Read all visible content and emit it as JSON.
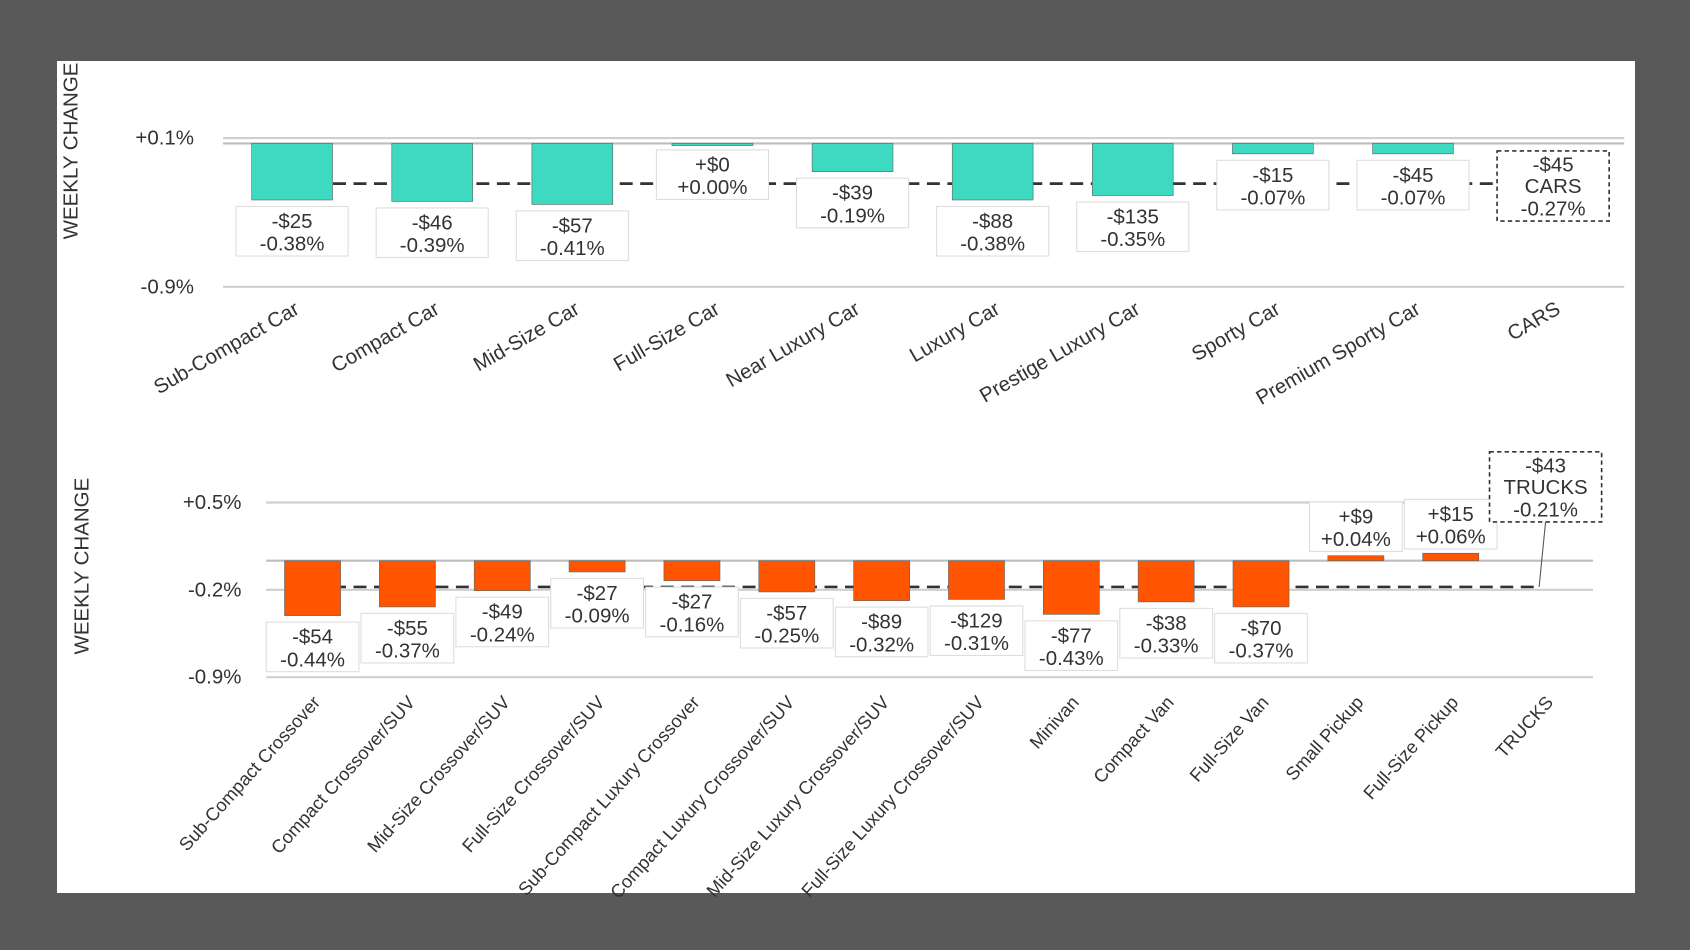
{
  "chart_data": [
    {
      "type": "bar",
      "ylabel": "WEEKLY CHANGE",
      "ylim": [
        -0.9,
        0.1
      ],
      "yticks": [
        "+0.1%",
        "-0.9%"
      ],
      "grid": true,
      "bar_color": "#3dd9c1",
      "categories": [
        "Sub-Compact Car",
        "Compact Car",
        "Mid-Size Car",
        "Full-Size Car",
        "Near Luxury Car",
        "Luxury Car",
        "Prestige Luxury Car",
        "Sporty Car",
        "Premium Sporty Car",
        "CARS"
      ],
      "values_pct": [
        -0.38,
        -0.39,
        -0.41,
        0.0,
        -0.19,
        -0.38,
        -0.35,
        -0.07,
        -0.07,
        null
      ],
      "values_usd": [
        "-$25",
        "-$46",
        "-$57",
        "+$0",
        "-$39",
        "-$88",
        "-$135",
        "-$15",
        "-$45",
        null
      ],
      "pct_labels": [
        "-0.38%",
        "-0.39%",
        "-0.41%",
        "+0.00%",
        "-0.19%",
        "-0.38%",
        "-0.35%",
        "-0.07%",
        "-0.07%",
        null
      ],
      "summary": {
        "name": "CARS",
        "usd": "-$45",
        "pct_label": "-0.27%",
        "value_pct": -0.27
      }
    },
    {
      "type": "bar",
      "ylabel": "WEEKLY CHANGE",
      "ylim": [
        -0.9,
        0.5
      ],
      "yticks": [
        "+0.5%",
        "-0.2%",
        "-0.9%"
      ],
      "grid": true,
      "bar_color": "#ff5500",
      "categories": [
        "Sub-Compact Crossover",
        "Compact Crossover/SUV",
        "Mid-Size Crossover/SUV",
        "Full-Size Crossover/SUV",
        "Sub-Compact Luxury Crossover",
        "Compact Luxury Crossover/SUV",
        "Mid-Size Luxury Crossover/SUV",
        "Full-Size Luxury Crossover/SUV",
        "Minivan",
        "Compact Van",
        "Full-Size Van",
        "Small Pickup",
        "Full-Size Pickup",
        "TRUCKS"
      ],
      "values_pct": [
        -0.44,
        -0.37,
        -0.24,
        -0.09,
        -0.16,
        -0.25,
        -0.32,
        -0.31,
        -0.43,
        -0.33,
        -0.37,
        0.04,
        0.06,
        null
      ],
      "values_usd": [
        "-$54",
        "-$55",
        "-$49",
        "-$27",
        "-$27",
        "-$57",
        "-$89",
        "-$129",
        "-$77",
        "-$38",
        "-$70",
        "+$9",
        "+$15",
        null
      ],
      "pct_labels": [
        "-0.44%",
        "-0.37%",
        "-0.24%",
        "-0.09%",
        "-0.16%",
        "-0.25%",
        "-0.32%",
        "-0.31%",
        "-0.43%",
        "-0.33%",
        "-0.37%",
        "+0.04%",
        "+0.06%",
        null
      ],
      "summary": {
        "name": "TRUCKS",
        "usd": "-$43",
        "pct_label": "-0.21%",
        "value_pct": -0.21
      }
    }
  ]
}
